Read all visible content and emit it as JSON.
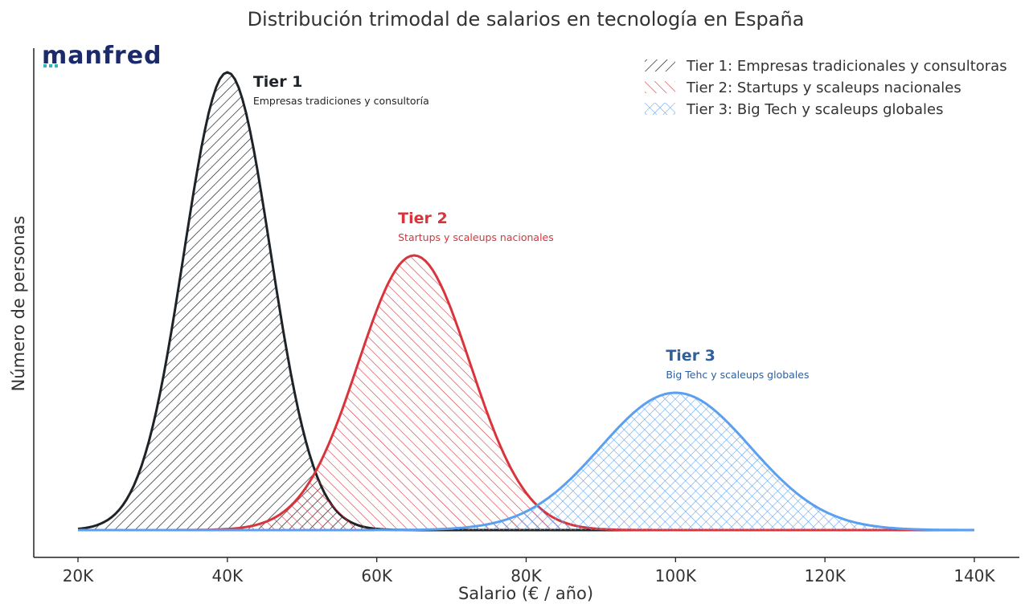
{
  "logo": {
    "text": "manfred"
  },
  "colors": {
    "tier1": "#1e2328",
    "tier2": "#d9343b",
    "tier3": "#5b9ff0",
    "tier3_label": "#2f5f9c",
    "axis": "#222222",
    "text": "#333333"
  },
  "chart_data": {
    "type": "area",
    "title": "Distribución trimodal de salarios en tecnología en España",
    "xlabel": "Salario (€ / año)",
    "ylabel": "Número de personas",
    "xlim": [
      20000,
      140000
    ],
    "x_ticks": [
      20000,
      40000,
      60000,
      80000,
      100000,
      120000,
      140000
    ],
    "x_tick_labels": [
      "20K",
      "40K",
      "60K",
      "80K",
      "100K",
      "120K",
      "140K"
    ],
    "y_ticks_shown": false,
    "ylim": [
      0,
      1.0
    ],
    "legend_position": "top-right",
    "series": [
      {
        "name": "Tier 1: Empresas tradicionales y consultoras",
        "peak_x": 40000,
        "peak_y": 1.0,
        "sd": 5800,
        "hatch": "diagonal"
      },
      {
        "name": "Tier 2: Startups y scaleups nacionales",
        "peak_x": 65000,
        "peak_y": 0.6,
        "sd": 7500,
        "hatch": "back-diagonal"
      },
      {
        "name": "Tier 3: Big Tech y scaleups globales",
        "peak_x": 100000,
        "peak_y": 0.3,
        "sd": 10000,
        "hatch": "cross"
      }
    ],
    "annotations": [
      {
        "title": "Tier 1",
        "subtitle": "Empresas tradiciones y consultoría",
        "series": 0
      },
      {
        "title": "Tier 2",
        "subtitle": "Startups y scaleups nacionales",
        "series": 1
      },
      {
        "title": "Tier 3",
        "subtitle": "Big Tehc y scaleups globales",
        "series": 2
      }
    ]
  }
}
